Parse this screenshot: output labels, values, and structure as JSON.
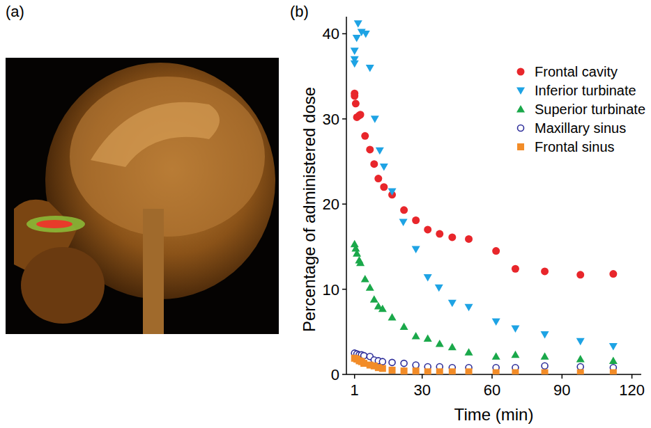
{
  "panel_labels": [
    "(a)",
    "(b)"
  ],
  "chart_data": {
    "type": "scatter",
    "x_label": "Time (min)",
    "y_label": "Percentage of  administered dose",
    "xlim": [
      -2.5,
      124
    ],
    "xticks": [
      1,
      30,
      60,
      90,
      120
    ],
    "ylim": [
      0,
      42
    ],
    "yticks": [
      0,
      10,
      20,
      30,
      40
    ],
    "grid": false,
    "legend": "top-right",
    "series": [
      {
        "name": "Frontal cavity",
        "color": "#e8262b",
        "marker": "circle",
        "x": [
          1,
          1,
          1.5,
          2,
          3,
          3.5,
          5.5,
          7.6,
          9.4,
          11.2,
          13.6,
          17.1,
          22.2,
          27.3,
          32.4,
          37.5,
          42.9,
          50,
          61.7,
          70,
          82.6,
          97.9,
          112
        ],
        "values": [
          33,
          32.7,
          31.8,
          30.2,
          30.4,
          30.5,
          28,
          26.4,
          24.7,
          23,
          22,
          21.1,
          19.3,
          18.1,
          17,
          16.5,
          16.1,
          15.9,
          14.5,
          12.4,
          12.1,
          11.7,
          11.8
        ]
      },
      {
        "name": "Inferior turbinate",
        "color": "#1ea3e4",
        "marker": "triangle_down",
        "x": [
          1,
          1,
          1,
          1.9,
          2.5,
          4,
          5.8,
          7.6,
          9.7,
          11.8,
          13.6,
          17.1,
          21.9,
          27.3,
          32.4,
          37.2,
          42.9,
          50,
          61.7,
          70,
          82.6,
          97.9,
          112
        ],
        "values": [
          37,
          36.5,
          38,
          39.5,
          41.2,
          40.2,
          40,
          36,
          30,
          26.3,
          24.4,
          21.5,
          17.9,
          14.7,
          11.4,
          10.2,
          8.4,
          7.9,
          6.2,
          5.4,
          4.7,
          3.9,
          3.3
        ]
      },
      {
        "name": "Superior turbinate",
        "color": "#1aa84a",
        "marker": "triangle_up",
        "x": [
          1,
          1.5,
          2,
          3,
          3.5,
          5.5,
          7.6,
          9.4,
          11.2,
          13,
          17.1,
          22.2,
          27.3,
          32.4,
          37.5,
          42.9,
          50,
          61.7,
          70,
          82.6,
          97.9,
          112
        ],
        "values": [
          15.3,
          14.8,
          14.2,
          13.4,
          13.1,
          11.2,
          10.2,
          8.8,
          8,
          7.7,
          6.7,
          5.6,
          4.5,
          4.2,
          3.6,
          3.2,
          2.6,
          2.1,
          2.3,
          2.1,
          1.8,
          1.6
        ]
      },
      {
        "name": "Maxillary sinus",
        "color": "#2e2e9a",
        "marker": "open_circle",
        "x": [
          1,
          2,
          3,
          4,
          5,
          7.6,
          9.4,
          11.2,
          13,
          17.1,
          22.2,
          27.3,
          32.4,
          37.5,
          42.9,
          50,
          61.7,
          70,
          82.6,
          97.9,
          112
        ],
        "values": [
          2.5,
          2.4,
          2.3,
          2.3,
          2.2,
          2.1,
          1.7,
          1.6,
          1.5,
          1.4,
          1.3,
          1.1,
          0.9,
          0.9,
          0.8,
          0.8,
          0.8,
          0.8,
          1,
          0.9,
          0.8
        ]
      },
      {
        "name": "Frontal sinus",
        "color": "#f28c28",
        "marker": "square",
        "x": [
          1,
          2,
          3,
          4,
          5,
          7.6,
          9.4,
          11.2,
          13,
          17.1,
          22.2,
          27.3,
          32.4,
          37.5,
          42.9,
          50,
          61.7,
          70,
          82.6,
          97.9,
          112
        ],
        "values": [
          1.9,
          1.8,
          1.6,
          1.5,
          1.3,
          1.1,
          1,
          0.8,
          0.7,
          0.5,
          0.4,
          0.4,
          0.3,
          0.3,
          0.3,
          0.3,
          0.2,
          0.2,
          0.2,
          0.2,
          0.2
        ]
      }
    ]
  }
}
